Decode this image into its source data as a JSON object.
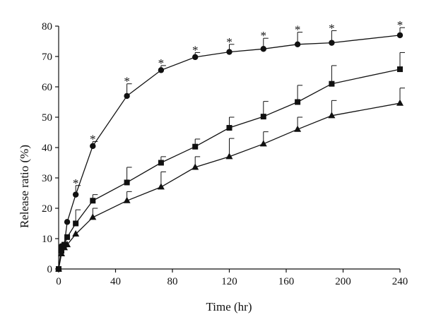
{
  "chart_data": {
    "type": "line",
    "xlabel": "Time (hr)",
    "ylabel": "Release ratio (%)",
    "xlim": [
      0,
      240
    ],
    "ylim": [
      0,
      80
    ],
    "x_ticks": [
      0,
      40,
      80,
      120,
      160,
      200,
      240
    ],
    "y_ticks": [
      0,
      10,
      20,
      30,
      40,
      50,
      60,
      70,
      80
    ],
    "grid": false,
    "legend": "none",
    "series": [
      {
        "marker": "circle",
        "x": [
          0,
          2,
          4,
          6,
          12,
          24,
          48,
          72,
          96,
          120,
          144,
          168,
          192,
          240
        ],
        "y": [
          0,
          7.5,
          8,
          15.5,
          24.5,
          40.5,
          57,
          65.5,
          69.8,
          71.5,
          72.5,
          74,
          74.5,
          77
        ],
        "error": [
          0,
          0,
          0,
          0,
          3,
          1.5,
          4,
          1.5,
          1.5,
          2.5,
          3.5,
          4,
          4,
          2.5
        ],
        "significance": [
          "",
          "",
          "",
          "",
          "*",
          "*",
          "*",
          "*",
          "*",
          "*",
          "*",
          "*",
          "*",
          "*"
        ]
      },
      {
        "marker": "square",
        "x": [
          0,
          2,
          4,
          6,
          12,
          24,
          48,
          72,
          96,
          120,
          144,
          168,
          192,
          240
        ],
        "y": [
          0,
          6,
          8,
          10.5,
          15,
          22.5,
          28.5,
          35,
          40.3,
          46.5,
          50.2,
          55,
          61,
          65.8
        ],
        "error": [
          0,
          0,
          0,
          0,
          4.5,
          2,
          5,
          2,
          2.5,
          3.5,
          5,
          5.5,
          6,
          5.5
        ]
      },
      {
        "marker": "triangle",
        "x": [
          0,
          2,
          4,
          6,
          12,
          24,
          48,
          72,
          96,
          120,
          144,
          168,
          192,
          240
        ],
        "y": [
          0,
          5,
          7,
          8,
          11.5,
          17,
          22.5,
          27,
          33.5,
          37,
          41.2,
          46,
          50.5,
          54.6
        ],
        "error": [
          0,
          0,
          0,
          0,
          0,
          3,
          3,
          5,
          3.5,
          6,
          4,
          4,
          5,
          5
        ]
      }
    ]
  }
}
